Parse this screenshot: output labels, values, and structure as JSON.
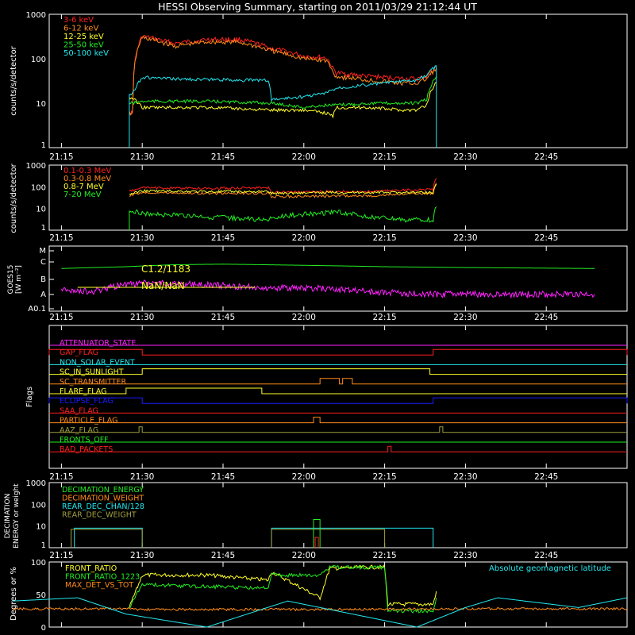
{
  "title": "HESSI Observing Summary, starting on 2011/03/29 21:12:44 UT",
  "time_ticks": [
    "21:15",
    "21:30",
    "21:45",
    "22:00",
    "22:15",
    "22:30",
    "22:45"
  ],
  "colors": {
    "red": "#ff2020",
    "orange": "#ff8c1a",
    "yellow": "#ffff2a",
    "green": "#22ee22",
    "cyan": "#22e8ee",
    "magenta": "#ff22ff",
    "blue": "#1a1aff",
    "olive": "#a0a040",
    "axis": "#ffffff",
    "bg": "#000000"
  },
  "panels": {
    "low_energy": {
      "ylabel": "counts/s/detector",
      "yticks": [
        "1000",
        "100",
        "10",
        "1"
      ],
      "legend": [
        "3-6 keV",
        "6-12 keV",
        "12-25 keV",
        "25-50 keV",
        "50-100 keV"
      ]
    },
    "high_energy": {
      "ylabel": "counts/s/detector",
      "yticks": [
        "1000",
        "100",
        "10",
        "1"
      ],
      "legend": [
        "0.1-0.3 MeV",
        "0.3-0.8 MeV",
        "0.8-7 MeV",
        "7-20 MeV"
      ]
    },
    "goes": {
      "ylabel": "GOES15",
      "ylabel2": "[W m⁻²]",
      "yticks": [
        "M",
        "C",
        "B",
        "A",
        "A0.1"
      ],
      "annotations": [
        "C1.2/1183",
        "NaN/NaN"
      ]
    },
    "flags": {
      "ylabel": "Flags",
      "items": [
        "ATTENUATOR_STATE",
        "GAP_FLAG",
        "NON_SOLAR_EVENT",
        "SC_IN_SUNLIGHT",
        "SC_TRANSMITTER",
        "FLARE_FLAG",
        "ECLIPSE_FLAG",
        "SAA_FLAG",
        "PARTICLE_FLAG",
        "AAZ_FLAG",
        "FRONTS_OFF",
        "BAD_PACKETS"
      ]
    },
    "decimation": {
      "ylabel": "DECIMATION",
      "ylabel2": "ENERGY or weight",
      "yticks": [
        "1000",
        "100",
        "10",
        "1"
      ],
      "legend": [
        "DECIMATION_ENERGY",
        "DECIMATION_WEIGHT",
        "REAR_DEC_CHAN/128",
        "REAR_DEC_WEIGHT"
      ]
    },
    "ratio": {
      "ylabel": "Degrees or %",
      "yticks": [
        "100",
        "50",
        "0"
      ],
      "legend": [
        "FRONT_RATIO",
        "FRONT_RATIO_1223",
        "MAX_DET_VS_TOT"
      ],
      "right_label": "Absolute geomagnetic latitude"
    }
  },
  "chart_data": [
    {
      "type": "line",
      "title": "HESSI Observing Summary, starting on 2011/03/29 21:12:44 UT",
      "ylabel": "counts/s/detector",
      "yscale": "log",
      "ylim": [
        1,
        1000
      ],
      "x_unit": "UT",
      "series": [
        {
          "name": "3-6 keV",
          "color": "red",
          "points": [
            [
              21.46,
              6
            ],
            [
              21.47,
              6
            ],
            [
              21.5,
              320
            ],
            [
              21.6,
              220
            ],
            [
              21.7,
              270
            ],
            [
              21.8,
              270
            ],
            [
              21.9,
              170
            ],
            [
              22.0,
              115
            ],
            [
              22.07,
              105
            ],
            [
              22.09,
              60
            ],
            [
              22.1,
              48
            ],
            [
              22.2,
              40
            ],
            [
              22.3,
              36
            ],
            [
              22.35,
              35
            ],
            [
              22.38,
              40
            ],
            [
              22.41,
              65
            ]
          ]
        },
        {
          "name": "6-12 keV",
          "color": "orange",
          "points": [
            [
              21.46,
              6
            ],
            [
              21.47,
              6
            ],
            [
              21.5,
              300
            ],
            [
              21.6,
              190
            ],
            [
              21.7,
              240
            ],
            [
              21.8,
              235
            ],
            [
              21.9,
              150
            ],
            [
              22.0,
              100
            ],
            [
              22.07,
              90
            ],
            [
              22.09,
              50
            ],
            [
              22.1,
              40
            ],
            [
              22.2,
              33
            ],
            [
              22.3,
              28
            ],
            [
              22.35,
              28
            ],
            [
              22.38,
              35
            ],
            [
              22.41,
              60
            ]
          ]
        },
        {
          "name": "12-25 keV",
          "color": "yellow",
          "points": [
            [
              21.46,
              13
            ],
            [
              21.47,
              13
            ],
            [
              21.5,
              8
            ],
            [
              21.6,
              8
            ],
            [
              21.7,
              8
            ],
            [
              21.8,
              7.5
            ],
            [
              21.9,
              7
            ],
            [
              22.0,
              7
            ],
            [
              22.07,
              6
            ],
            [
              22.09,
              5
            ],
            [
              22.1,
              8
            ],
            [
              22.2,
              8
            ],
            [
              22.3,
              7
            ],
            [
              22.35,
              7
            ],
            [
              22.38,
              9
            ],
            [
              22.41,
              30
            ]
          ]
        },
        {
          "name": "25-50 keV",
          "color": "green",
          "points": [
            [
              21.46,
              10
            ],
            [
              21.47,
              10
            ],
            [
              21.5,
              11
            ],
            [
              21.6,
              11
            ],
            [
              21.7,
              11
            ],
            [
              21.8,
              10.5
            ],
            [
              21.9,
              10
            ],
            [
              22.0,
              8
            ],
            [
              22.07,
              9
            ],
            [
              22.09,
              9
            ],
            [
              22.1,
              9
            ],
            [
              22.2,
              10
            ],
            [
              22.3,
              10
            ],
            [
              22.35,
              10
            ],
            [
              22.38,
              12
            ],
            [
              22.41,
              40
            ]
          ]
        },
        {
          "name": "50-100 keV",
          "color": "cyan",
          "points": [
            [
              21.46,
              16
            ],
            [
              21.47,
              16
            ],
            [
              21.5,
              38
            ],
            [
              21.6,
              35
            ],
            [
              21.7,
              34
            ],
            [
              21.8,
              33
            ],
            [
              21.89,
              33
            ],
            [
              21.9,
              12
            ],
            [
              22.0,
              14
            ],
            [
              22.07,
              17
            ],
            [
              22.09,
              20
            ],
            [
              22.1,
              22
            ],
            [
              22.2,
              26
            ],
            [
              22.3,
              31
            ],
            [
              22.35,
              32
            ],
            [
              22.38,
              42
            ],
            [
              22.41,
              70
            ]
          ]
        }
      ]
    },
    {
      "type": "line",
      "ylabel": "counts/s/detector",
      "yscale": "log",
      "ylim": [
        1,
        1000
      ],
      "series": [
        {
          "name": "0.1-0.3 MeV",
          "color": "red",
          "points": [
            [
              21.46,
              60
            ],
            [
              21.5,
              90
            ],
            [
              21.7,
              85
            ],
            [
              21.89,
              90
            ],
            [
              21.9,
              55
            ],
            [
              22.1,
              60
            ],
            [
              22.2,
              60
            ],
            [
              22.3,
              70
            ],
            [
              22.4,
              75
            ],
            [
              22.41,
              250
            ]
          ]
        },
        {
          "name": "0.3-0.8 MeV",
          "color": "orange",
          "points": [
            [
              21.46,
              40
            ],
            [
              21.5,
              55
            ],
            [
              21.7,
              50
            ],
            [
              21.89,
              50
            ],
            [
              21.9,
              35
            ],
            [
              22.1,
              38
            ],
            [
              22.2,
              38
            ],
            [
              22.3,
              45
            ],
            [
              22.4,
              50
            ],
            [
              22.41,
              150
            ]
          ]
        },
        {
          "name": "0.8-7 MeV",
          "color": "yellow",
          "points": [
            [
              21.46,
              45
            ],
            [
              21.5,
              65
            ],
            [
              21.7,
              60
            ],
            [
              21.89,
              60
            ],
            [
              21.9,
              50
            ],
            [
              22.1,
              55
            ],
            [
              22.2,
              55
            ],
            [
              22.3,
              55
            ],
            [
              22.4,
              55
            ],
            [
              22.41,
              130
            ]
          ]
        },
        {
          "name": "7-20 MeV",
          "color": "green",
          "points": [
            [
              21.46,
              8
            ],
            [
              21.5,
              6
            ],
            [
              21.7,
              4
            ],
            [
              21.89,
              3
            ],
            [
              21.9,
              4
            ],
            [
              22.05,
              6
            ],
            [
              22.1,
              7
            ],
            [
              22.2,
              4
            ],
            [
              22.3,
              3
            ],
            [
              22.4,
              3
            ],
            [
              22.41,
              12
            ]
          ]
        }
      ]
    },
    {
      "type": "line",
      "ylabel": "GOES15",
      "yscale": "log",
      "series": [
        {
          "name": "green",
          "color": "green",
          "points": [
            [
              21.25,
              6e-07
            ],
            [
              21.45,
              8e-07
            ],
            [
              21.6,
              1.1e-06
            ],
            [
              21.75,
              1.2e-06
            ],
            [
              22.0,
              1e-06
            ],
            [
              22.25,
              8e-07
            ],
            [
              22.5,
              7e-07
            ],
            [
              22.9,
              6e-07
            ]
          ]
        },
        {
          "name": "magenta",
          "color": "magenta",
          "points": [
            [
              21.25,
              2e-08
            ],
            [
              21.35,
              1.5e-08
            ],
            [
              21.5,
              6e-08
            ],
            [
              21.65,
              5e-08
            ],
            [
              21.85,
              3e-08
            ],
            [
              22.05,
              2.5e-08
            ],
            [
              22.2,
              1.5e-08
            ],
            [
              22.4,
              1e-08
            ],
            [
              22.9,
              1e-08
            ]
          ]
        },
        {
          "name": "yellow",
          "color": "yellow",
          "points": [
            [
              21.3,
              3e-08
            ],
            [
              21.85,
              3e-08
            ]
          ]
        }
      ]
    },
    {
      "type": "line",
      "ylabel": "Degrees or %",
      "ylim": [
        0,
        100
      ],
      "series": [
        {
          "name": "FRONT_RATIO",
          "color": "yellow",
          "points": [
            [
              21.46,
              30
            ],
            [
              21.5,
              80
            ],
            [
              21.7,
              80
            ],
            [
              21.89,
              72
            ],
            [
              21.9,
              85
            ],
            [
              22.05,
              45
            ],
            [
              22.08,
              90
            ],
            [
              22.2,
              92
            ],
            [
              22.25,
              92
            ],
            [
              22.26,
              35
            ],
            [
              22.4,
              35
            ],
            [
              22.41,
              55
            ]
          ]
        },
        {
          "name": "FRONT_RATIO_1223",
          "color": "green",
          "points": [
            [
              21.46,
              30
            ],
            [
              21.5,
              65
            ],
            [
              21.7,
              62
            ],
            [
              21.89,
              60
            ],
            [
              21.9,
              80
            ],
            [
              22.05,
              80
            ],
            [
              22.08,
              92
            ],
            [
              22.2,
              92
            ],
            [
              22.25,
              92
            ],
            [
              22.26,
              25
            ],
            [
              22.4,
              25
            ],
            [
              22.41,
              45
            ]
          ]
        },
        {
          "name": "MAX_DET_VS_TOT",
          "color": "orange",
          "points": [
            [
              21.1,
              28
            ],
            [
              21.46,
              28
            ],
            [
              21.5,
              27
            ],
            [
              22.0,
              27
            ],
            [
              22.5,
              28
            ],
            [
              23.0,
              28
            ]
          ]
        },
        {
          "name": "Absolute geomagnetic latitude",
          "color": "cyan",
          "points": [
            [
              21.1,
              40
            ],
            [
              21.3,
              45
            ],
            [
              21.45,
              20
            ],
            [
              21.7,
              0
            ],
            [
              21.95,
              40
            ],
            [
              22.05,
              30
            ],
            [
              22.2,
              15
            ],
            [
              22.35,
              0
            ],
            [
              22.5,
              30
            ],
            [
              22.6,
              45
            ],
            [
              22.85,
              30
            ],
            [
              23.0,
              45
            ]
          ]
        }
      ]
    }
  ]
}
